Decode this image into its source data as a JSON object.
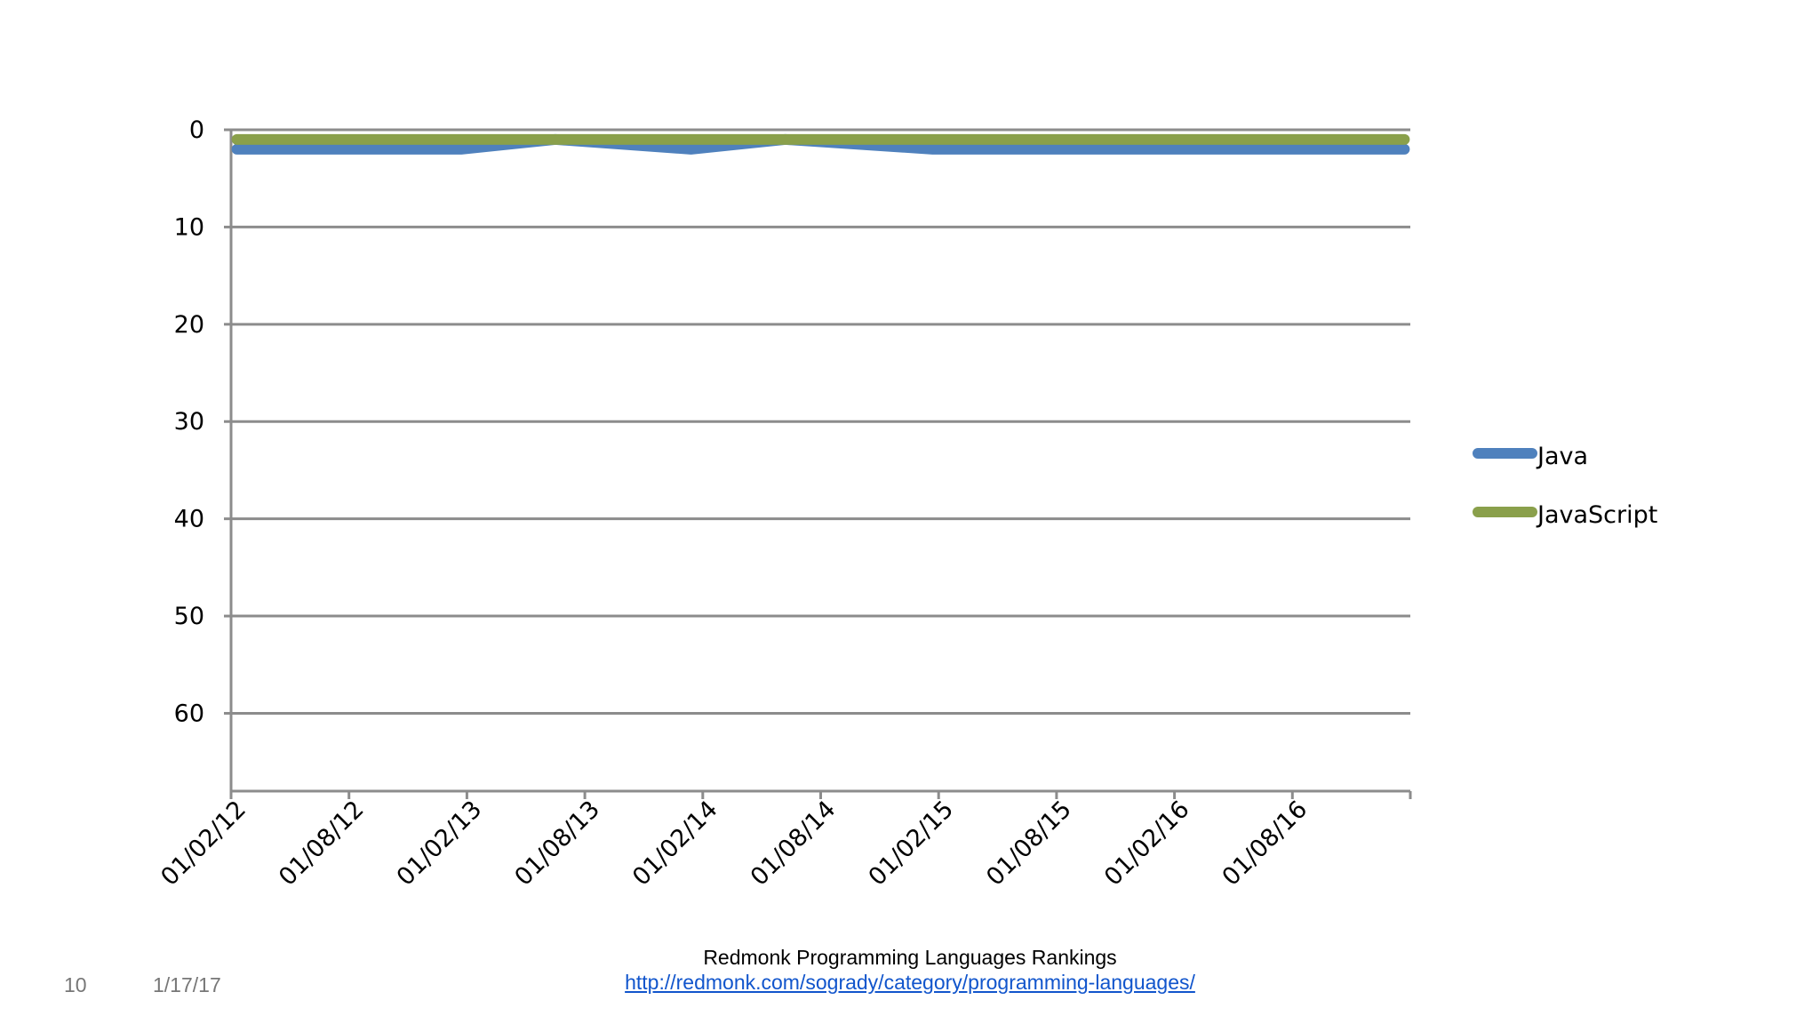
{
  "chart_data": {
    "type": "line",
    "title": "",
    "xlabel": "",
    "ylabel": "",
    "y_inverted": true,
    "ylim": [
      0,
      68
    ],
    "y_ticks": [
      0,
      10,
      20,
      30,
      40,
      50,
      60
    ],
    "x_ticks": [
      "01/02/12",
      "01/08/12",
      "01/02/13",
      "01/08/13",
      "01/02/14",
      "01/08/14",
      "01/02/15",
      "01/08/15",
      "01/02/16",
      "01/08/16"
    ],
    "x_range": [
      0,
      10
    ],
    "grid": true,
    "legend_position": "right",
    "series": [
      {
        "name": "Java",
        "color": "#4f81bd",
        "x": [
          0.05,
          1.0,
          1.95,
          2.75,
          3.9,
          4.7,
          5.95,
          7.0,
          8.0,
          9.0,
          9.95
        ],
        "values": [
          2,
          2,
          2,
          1,
          2,
          1,
          2,
          2,
          2,
          2,
          2
        ]
      },
      {
        "name": "JavaScript",
        "color": "#8aa04b",
        "x": [
          0.05,
          1.0,
          2.0,
          3.0,
          4.0,
          5.0,
          6.0,
          7.0,
          8.0,
          9.0,
          9.95
        ],
        "values": [
          1,
          1,
          1,
          1,
          1,
          1,
          1,
          1,
          1,
          1,
          1
        ]
      }
    ]
  },
  "footer": {
    "source_title": "Redmonk Programming Languages Rankings",
    "source_url": "http://redmonk.com/sogrady/category/programming-languages/",
    "slide_number": "10",
    "date": "1/17/17"
  }
}
